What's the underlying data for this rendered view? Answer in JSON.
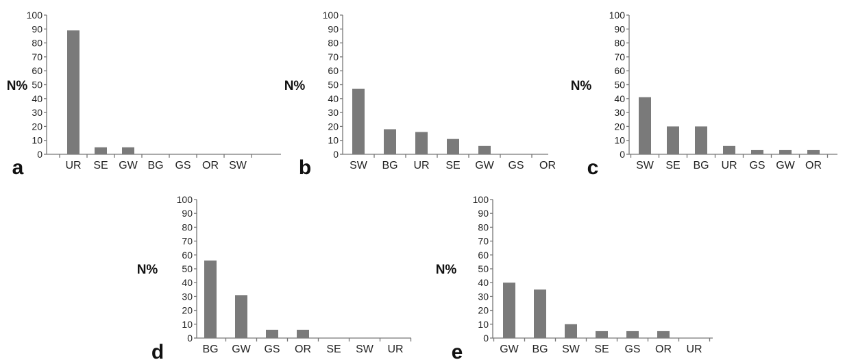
{
  "figure": {
    "bar_color": "#7a7a7a",
    "axis_color": "#777777"
  },
  "chart_data": [
    {
      "panel": "a",
      "type": "bar",
      "ylabel": "N%",
      "ylim": [
        0,
        100
      ],
      "yticks": [
        "0",
        "10",
        "20",
        "30",
        "40",
        "50",
        "60",
        "70",
        "80",
        "90",
        "100"
      ],
      "categories": [
        "UR",
        "SE",
        "GW",
        "BG",
        "GS",
        "OR",
        "SW"
      ],
      "values": [
        89,
        5,
        5,
        0,
        0,
        0,
        0
      ]
    },
    {
      "panel": "b",
      "type": "bar",
      "ylabel": "N%",
      "ylim": [
        0,
        100
      ],
      "yticks": [
        "0",
        "10",
        "20",
        "30",
        "40",
        "50",
        "60",
        "70",
        "80",
        "90",
        "100"
      ],
      "categories": [
        "SW",
        "BG",
        "UR",
        "SE",
        "GW",
        "GS",
        "OR"
      ],
      "values": [
        47,
        18,
        16,
        11,
        6,
        0,
        0
      ]
    },
    {
      "panel": "c",
      "type": "bar",
      "ylabel": "N%",
      "ylim": [
        0,
        100
      ],
      "yticks": [
        "0",
        "10",
        "20",
        "30",
        "40",
        "50",
        "60",
        "70",
        "80",
        "90",
        "100"
      ],
      "categories": [
        "SW",
        "SE",
        "BG",
        "UR",
        "GS",
        "GW",
        "OR"
      ],
      "values": [
        41,
        20,
        20,
        6,
        3,
        3,
        3
      ]
    },
    {
      "panel": "d",
      "type": "bar",
      "ylabel": "N%",
      "ylim": [
        0,
        100
      ],
      "yticks": [
        "0",
        "10",
        "20",
        "30",
        "40",
        "50",
        "60",
        "70",
        "80",
        "90",
        "100"
      ],
      "categories": [
        "BG",
        "GW",
        "GS",
        "OR",
        "SE",
        "SW",
        "UR"
      ],
      "values": [
        56,
        31,
        6,
        6,
        0,
        0,
        0
      ]
    },
    {
      "panel": "e",
      "type": "bar",
      "ylabel": "N%",
      "ylim": [
        0,
        100
      ],
      "yticks": [
        "0",
        "10",
        "20",
        "30",
        "40",
        "50",
        "60",
        "70",
        "80",
        "90",
        "100"
      ],
      "categories": [
        "GW",
        "BG",
        "SW",
        "SE",
        "GS",
        "OR",
        "UR"
      ],
      "values": [
        40,
        35,
        10,
        5,
        5,
        5,
        0
      ]
    }
  ]
}
